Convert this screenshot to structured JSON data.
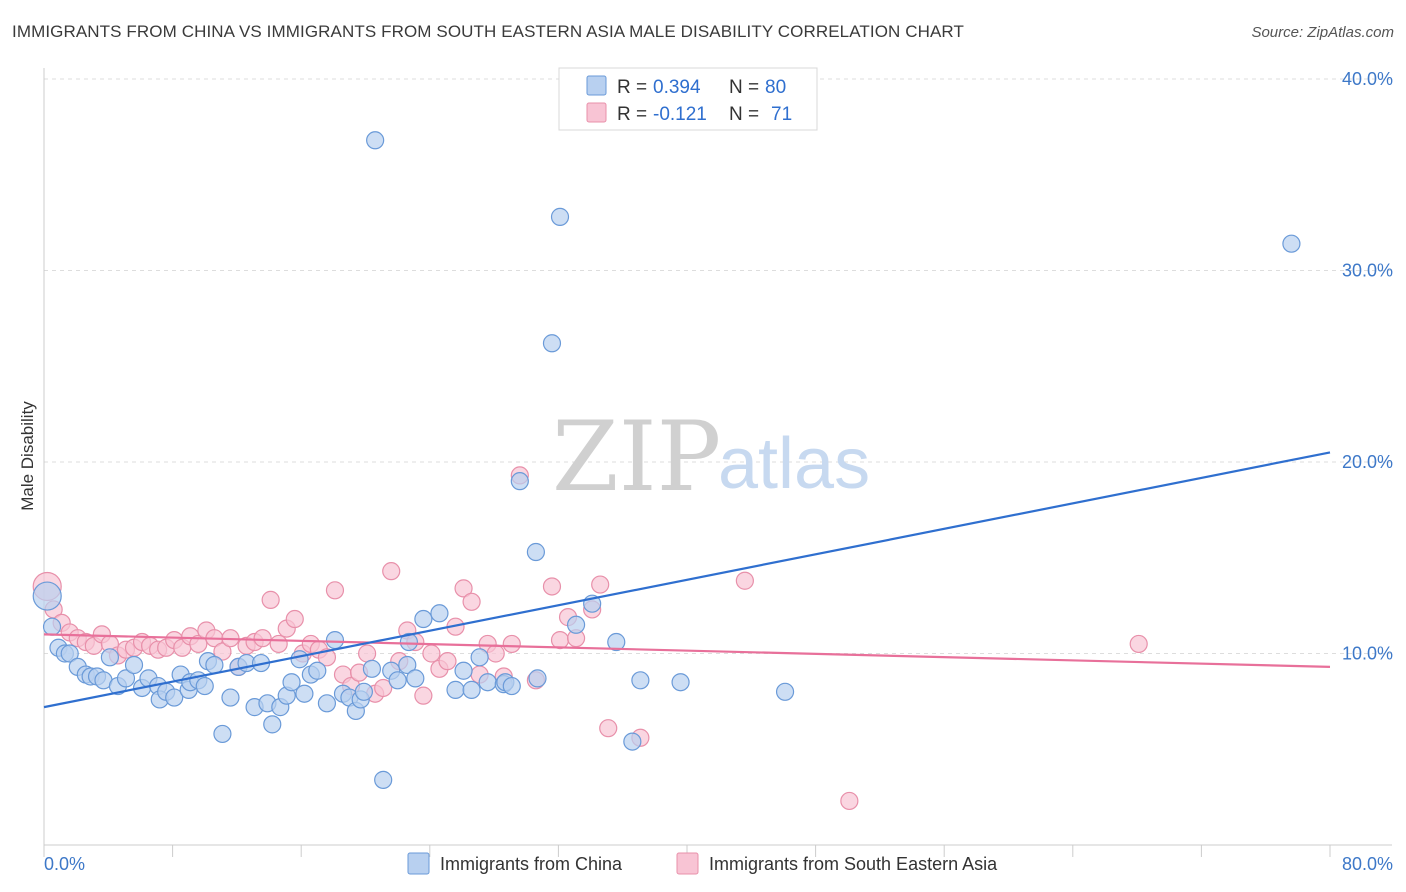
{
  "header": {
    "title": "IMMIGRANTS FROM CHINA VS IMMIGRANTS FROM SOUTH EASTERN ASIA MALE DISABILITY CORRELATION CHART",
    "source": "Source: ZipAtlas.com"
  },
  "watermark": {
    "zip": "ZIP",
    "atlas": "atlas"
  },
  "legend": {
    "china": {
      "r_label": "R =",
      "r_value": "0.394",
      "n_label": "N =",
      "n_value": "80"
    },
    "sea": {
      "r_label": "R =",
      "r_value": "-0.121",
      "n_label": "N =",
      "n_value": "71"
    }
  },
  "colors": {
    "china_fill": "#b8d0f0",
    "china_stroke": "#6a9ad8",
    "china_line": "#2f6fcf",
    "sea_fill": "#f8c4d4",
    "sea_stroke": "#e890aa",
    "sea_line": "#e8709a",
    "grid": "#dddddd",
    "axis_text": "#3d78c8"
  },
  "chart_data": {
    "type": "scatter",
    "title": "IMMIGRANTS FROM CHINA VS IMMIGRANTS FROM SOUTH EASTERN ASIA MALE DISABILITY CORRELATION CHART",
    "xlabel": "",
    "ylabel": "Male Disability",
    "xlim": [
      0,
      80
    ],
    "ylim": [
      0,
      40
    ],
    "x_tick_labels": [
      {
        "value": 0,
        "label": "0.0%"
      },
      {
        "value": 80,
        "label": "80.0%"
      }
    ],
    "y_tick_labels": [
      {
        "value": 10,
        "label": "10.0%"
      },
      {
        "value": 20,
        "label": "20.0%"
      },
      {
        "value": 30,
        "label": "30.0%"
      },
      {
        "value": 40,
        "label": "40.0%"
      }
    ],
    "grid": true,
    "legend_position": "top-center",
    "series": [
      {
        "name": "Immigrants from China",
        "color": "#6a9ad8",
        "trend": [
          [
            0,
            7.2
          ],
          [
            80,
            20.5
          ]
        ],
        "points": [
          [
            0.2,
            13.0
          ],
          [
            0.5,
            11.4
          ],
          [
            0.9,
            10.3
          ],
          [
            1.3,
            10.0
          ],
          [
            1.6,
            10.0
          ],
          [
            2.1,
            9.3
          ],
          [
            2.6,
            8.9
          ],
          [
            2.9,
            8.8
          ],
          [
            3.3,
            8.8
          ],
          [
            3.7,
            8.6
          ],
          [
            4.1,
            9.8
          ],
          [
            4.6,
            8.3
          ],
          [
            5.1,
            8.7
          ],
          [
            5.6,
            9.4
          ],
          [
            6.1,
            8.2
          ],
          [
            6.5,
            8.7
          ],
          [
            7.1,
            8.3
          ],
          [
            7.2,
            7.6
          ],
          [
            7.6,
            8.0
          ],
          [
            8.1,
            7.7
          ],
          [
            8.5,
            8.9
          ],
          [
            9.0,
            8.1
          ],
          [
            9.1,
            8.5
          ],
          [
            9.6,
            8.6
          ],
          [
            10.0,
            8.3
          ],
          [
            10.2,
            9.6
          ],
          [
            10.6,
            9.4
          ],
          [
            11.1,
            5.8
          ],
          [
            11.6,
            7.7
          ],
          [
            12.1,
            9.3
          ],
          [
            12.6,
            9.5
          ],
          [
            13.1,
            7.2
          ],
          [
            13.5,
            9.5
          ],
          [
            13.9,
            7.4
          ],
          [
            14.2,
            6.3
          ],
          [
            14.7,
            7.2
          ],
          [
            15.1,
            7.8
          ],
          [
            15.4,
            8.5
          ],
          [
            15.9,
            9.7
          ],
          [
            16.2,
            7.9
          ],
          [
            16.6,
            8.9
          ],
          [
            17.0,
            9.1
          ],
          [
            17.6,
            7.4
          ],
          [
            18.1,
            10.7
          ],
          [
            18.6,
            7.9
          ],
          [
            19.0,
            7.7
          ],
          [
            19.4,
            7.0
          ],
          [
            19.7,
            7.6
          ],
          [
            19.9,
            8.0
          ],
          [
            20.4,
            9.2
          ],
          [
            20.6,
            36.8
          ],
          [
            21.1,
            3.4
          ],
          [
            21.6,
            9.1
          ],
          [
            22.0,
            8.6
          ],
          [
            22.6,
            9.4
          ],
          [
            22.7,
            10.6
          ],
          [
            23.1,
            8.7
          ],
          [
            23.6,
            11.8
          ],
          [
            24.6,
            12.1
          ],
          [
            25.6,
            8.1
          ],
          [
            26.1,
            9.1
          ],
          [
            26.6,
            8.1
          ],
          [
            27.1,
            9.8
          ],
          [
            27.6,
            8.5
          ],
          [
            28.6,
            8.4
          ],
          [
            28.7,
            8.5
          ],
          [
            29.1,
            8.3
          ],
          [
            29.6,
            19.0
          ],
          [
            30.6,
            15.3
          ],
          [
            30.7,
            8.7
          ],
          [
            31.6,
            26.2
          ],
          [
            32.1,
            32.8
          ],
          [
            33.1,
            11.5
          ],
          [
            34.1,
            12.6
          ],
          [
            35.6,
            10.6
          ],
          [
            36.6,
            5.4
          ],
          [
            37.1,
            8.6
          ],
          [
            39.6,
            8.5
          ],
          [
            46.1,
            8.0
          ],
          [
            77.6,
            31.4
          ]
        ]
      },
      {
        "name": "Immigrants from South Eastern Asia",
        "color": "#e890aa",
        "trend": [
          [
            0,
            11.0
          ],
          [
            80,
            9.3
          ]
        ],
        "points": [
          [
            0.2,
            13.5
          ],
          [
            0.6,
            12.3
          ],
          [
            1.1,
            11.6
          ],
          [
            1.6,
            11.1
          ],
          [
            2.1,
            10.8
          ],
          [
            2.6,
            10.6
          ],
          [
            3.1,
            10.4
          ],
          [
            3.6,
            11.0
          ],
          [
            4.1,
            10.5
          ],
          [
            4.6,
            9.9
          ],
          [
            5.1,
            10.2
          ],
          [
            5.6,
            10.3
          ],
          [
            6.1,
            10.6
          ],
          [
            6.6,
            10.4
          ],
          [
            7.1,
            10.2
          ],
          [
            7.6,
            10.3
          ],
          [
            8.1,
            10.7
          ],
          [
            8.6,
            10.3
          ],
          [
            9.1,
            10.9
          ],
          [
            9.6,
            10.5
          ],
          [
            10.1,
            11.2
          ],
          [
            10.6,
            10.8
          ],
          [
            11.1,
            10.1
          ],
          [
            11.6,
            10.8
          ],
          [
            12.1,
            9.3
          ],
          [
            12.6,
            10.4
          ],
          [
            13.1,
            10.6
          ],
          [
            13.6,
            10.8
          ],
          [
            14.1,
            12.8
          ],
          [
            14.6,
            10.5
          ],
          [
            15.1,
            11.3
          ],
          [
            15.6,
            11.8
          ],
          [
            16.1,
            10.0
          ],
          [
            16.6,
            10.5
          ],
          [
            17.1,
            10.2
          ],
          [
            17.6,
            9.8
          ],
          [
            18.1,
            13.3
          ],
          [
            18.6,
            8.9
          ],
          [
            19.1,
            8.3
          ],
          [
            19.6,
            9.0
          ],
          [
            20.1,
            10.0
          ],
          [
            20.6,
            7.9
          ],
          [
            21.1,
            8.2
          ],
          [
            21.6,
            14.3
          ],
          [
            22.1,
            9.6
          ],
          [
            22.6,
            11.2
          ],
          [
            23.1,
            10.6
          ],
          [
            23.6,
            7.8
          ],
          [
            24.1,
            10.0
          ],
          [
            24.6,
            9.2
          ],
          [
            25.1,
            9.6
          ],
          [
            25.6,
            11.4
          ],
          [
            26.1,
            13.4
          ],
          [
            26.6,
            12.7
          ],
          [
            27.1,
            8.9
          ],
          [
            27.6,
            10.5
          ],
          [
            28.1,
            10.0
          ],
          [
            28.6,
            8.8
          ],
          [
            29.1,
            10.5
          ],
          [
            29.6,
            19.3
          ],
          [
            30.6,
            8.6
          ],
          [
            31.6,
            13.5
          ],
          [
            32.1,
            10.7
          ],
          [
            32.6,
            11.9
          ],
          [
            33.1,
            10.8
          ],
          [
            34.1,
            12.3
          ],
          [
            34.6,
            13.6
          ],
          [
            35.1,
            6.1
          ],
          [
            37.1,
            5.6
          ],
          [
            43.6,
            13.8
          ],
          [
            50.1,
            2.3
          ],
          [
            68.1,
            10.5
          ]
        ]
      }
    ]
  },
  "bottom_legend": {
    "china_label": "Immigrants from China",
    "sea_label": "Immigrants from South Eastern Asia"
  }
}
